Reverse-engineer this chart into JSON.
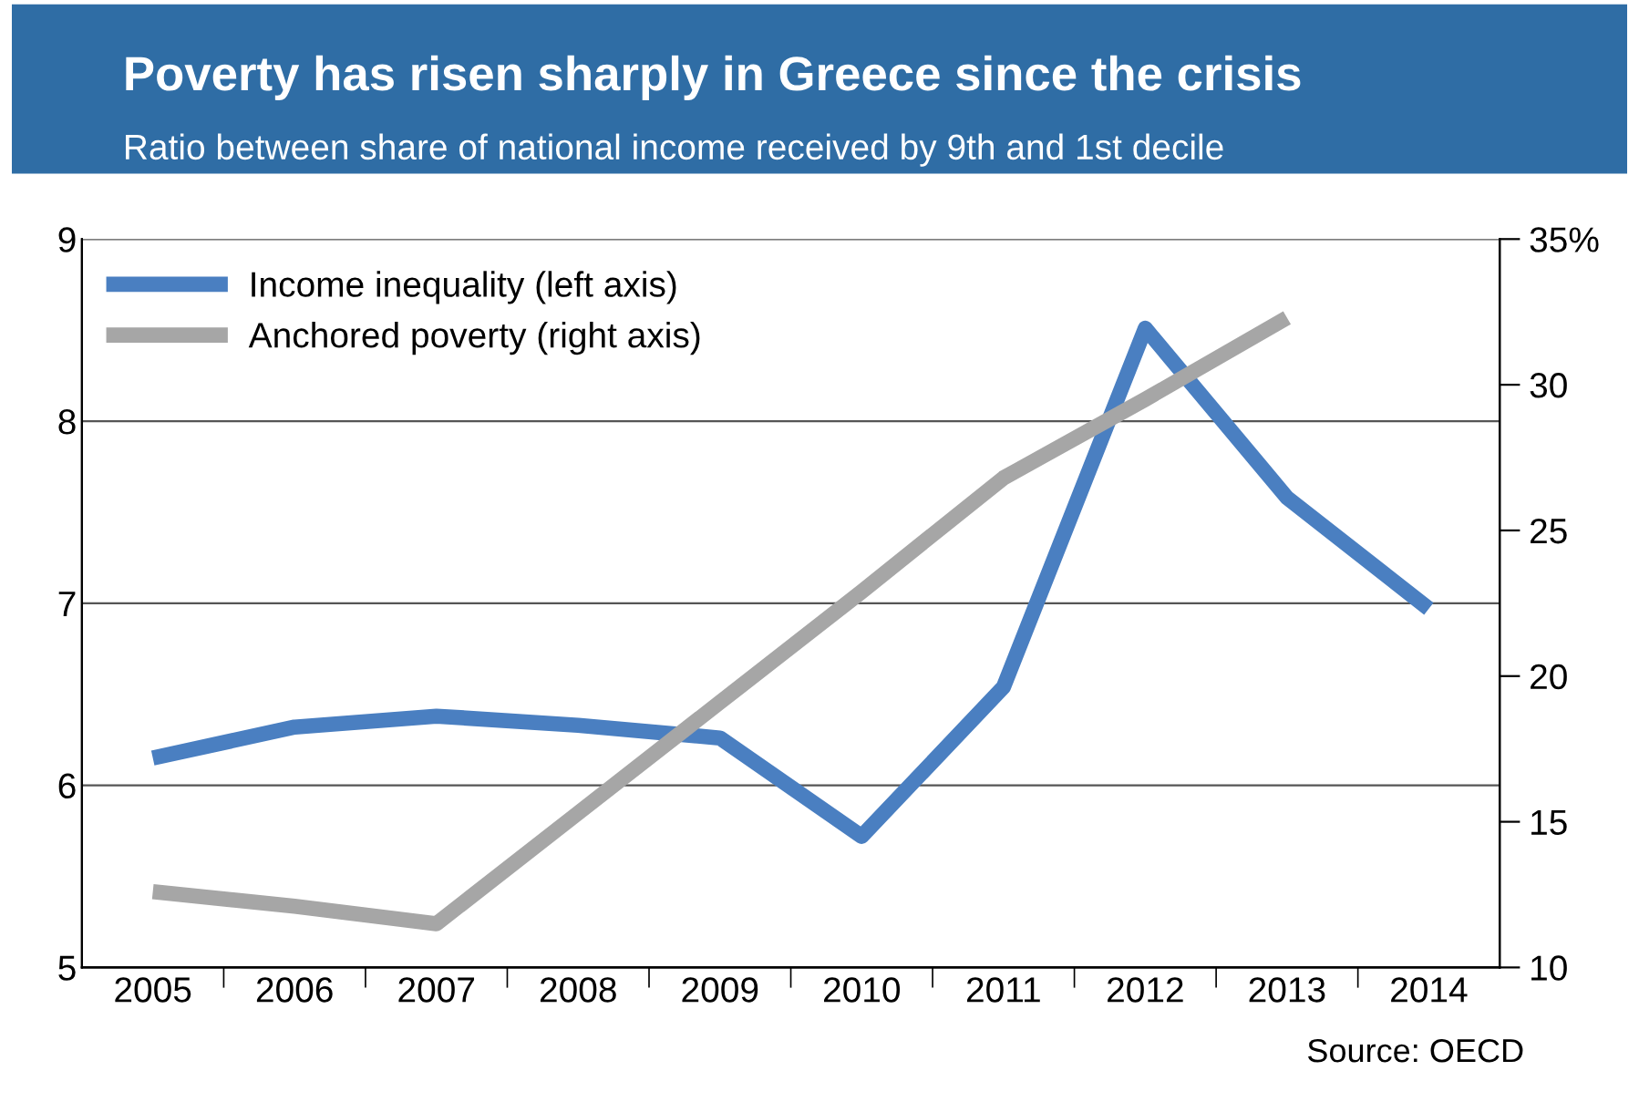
{
  "chart_data": {
    "type": "line",
    "title": "Poverty has risen sharply in Greece since the crisis",
    "subtitle": "Ratio between share of national income received by 9th and 1st decile",
    "categories": [
      "2005",
      "2006",
      "2007",
      "2008",
      "2009",
      "2010",
      "2011",
      "2012",
      "2013",
      "2014"
    ],
    "series": [
      {
        "name": "Income inequality (left axis)",
        "color": "#4a7fc1",
        "values": [
          6.15,
          6.32,
          6.38,
          6.33,
          6.26,
          5.72,
          6.54,
          8.51,
          7.58,
          6.97
        ]
      },
      {
        "name": "Anchored poverty (right axis)",
        "color": "#a6a6a6",
        "axis": "y2",
        "values": [
          12.6,
          12.1,
          11.5,
          15.3,
          19.1,
          22.9,
          26.8,
          29.5,
          32.3,
          null
        ]
      }
    ],
    "ylim": [
      5,
      9
    ],
    "yticks": [
      5,
      6,
      7,
      8,
      9
    ],
    "y2lim": [
      10,
      35
    ],
    "y2ticks": [
      10,
      15,
      20,
      25,
      30,
      {
        "value": 35,
        "label": "35%"
      }
    ],
    "grid": "y",
    "legend": "top left",
    "line_style": "solid",
    "marker": "none",
    "annotations": [
      "Source: OECD"
    ]
  }
}
